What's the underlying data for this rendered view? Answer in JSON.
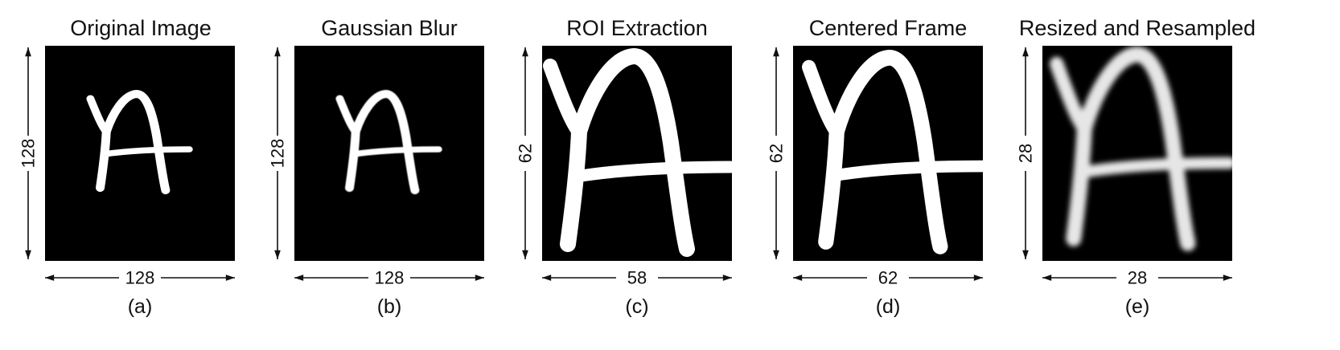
{
  "panels": [
    {
      "id": "a",
      "title": "Original Image",
      "width_label": "128",
      "height_label": "128",
      "caption": "(a)",
      "stage": "original"
    },
    {
      "id": "b",
      "title": "Gaussian Blur",
      "width_label": "128",
      "height_label": "128",
      "caption": "(b)",
      "stage": "blur"
    },
    {
      "id": "c",
      "title": "ROI Extraction",
      "width_label": "58",
      "height_label": "62",
      "caption": "(c)",
      "stage": "roi"
    },
    {
      "id": "d",
      "title": "Centered Frame",
      "width_label": "62",
      "height_label": "62",
      "caption": "(d)",
      "stage": "centered"
    },
    {
      "id": "e",
      "title": "Resized and Resampled",
      "width_label": "28",
      "height_label": "28",
      "caption": "(e)",
      "stage": "resampled"
    }
  ],
  "colors": {
    "background": "#000000",
    "glyph": "#ffffff",
    "glyph_resampled": "#e6e6e6",
    "text": "#111111"
  },
  "glyph_name": "handwritten-letter-A"
}
